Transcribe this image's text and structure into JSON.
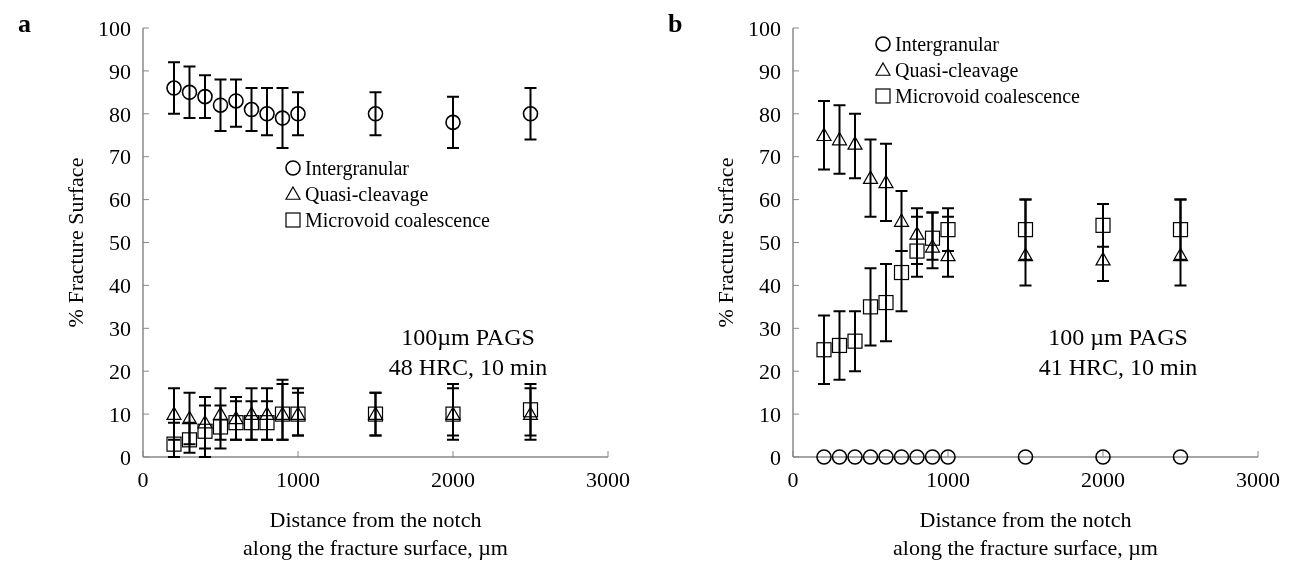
{
  "chart_data": [
    {
      "type": "scatter",
      "title": "a",
      "xlabel": "Distance from the notch\nalong the fracture surface, µm",
      "ylabel": "% Fracture Surface",
      "x": [
        200,
        300,
        400,
        500,
        600,
        700,
        800,
        900,
        1000,
        1500,
        2000,
        2500
      ],
      "xlim": [
        0,
        3000
      ],
      "xticks": [
        0,
        1000,
        2000,
        3000
      ],
      "ylim": [
        0,
        100
      ],
      "yticks": [
        0,
        10,
        20,
        30,
        40,
        50,
        60,
        70,
        80,
        90,
        100
      ],
      "grid": false,
      "legend": "right",
      "annotations": [
        "100µm PAGS\n48 HRC, 10 min"
      ],
      "series": [
        {
          "name": "Intergranular",
          "color": "#000000",
          "marker": "circle",
          "values": [
            86,
            85,
            84,
            82,
            83,
            81,
            80,
            79,
            80,
            80,
            78,
            80
          ],
          "errors": [
            [
              80,
              92
            ],
            [
              79,
              91
            ],
            [
              79,
              89
            ],
            [
              76,
              88
            ],
            [
              77,
              88
            ],
            [
              76,
              86
            ],
            [
              75,
              86
            ],
            [
              72,
              86
            ],
            [
              75,
              85
            ],
            [
              75,
              85
            ],
            [
              72,
              84
            ],
            [
              74,
              86
            ]
          ]
        },
        {
          "name": "Quasi-cleavage",
          "color": "#000000",
          "marker": "triangle",
          "values": [
            10,
            9,
            8,
            10,
            9,
            10,
            10,
            10,
            10,
            10,
            10,
            10
          ],
          "errors": [
            [
              4,
              16
            ],
            [
              3,
              15
            ],
            [
              2,
              14
            ],
            [
              4,
              16
            ],
            [
              4,
              14
            ],
            [
              4,
              16
            ],
            [
              4,
              16
            ],
            [
              4,
              18
            ],
            [
              5,
              15
            ],
            [
              5,
              15
            ],
            [
              4,
              17
            ],
            [
              4,
              17
            ]
          ]
        },
        {
          "name": "Microvoid coalescence",
          "color": "#000000",
          "marker": "square",
          "values": [
            3,
            4,
            6,
            7,
            8,
            8,
            8,
            10,
            10,
            10,
            10,
            11
          ],
          "errors": [
            [
              0,
              8
            ],
            [
              1,
              8
            ],
            [
              0,
              12
            ],
            [
              2,
              12
            ],
            [
              4,
              13
            ],
            [
              4,
              13
            ],
            [
              4,
              13
            ],
            [
              4,
              17
            ],
            [
              5,
              16
            ],
            [
              5,
              15
            ],
            [
              5,
              16
            ],
            [
              5,
              16
            ]
          ]
        }
      ]
    },
    {
      "type": "scatter",
      "title": "b",
      "xlabel": "Distance from the notch\nalong the fracture surface, µm",
      "ylabel": "% Fracture Surface",
      "x": [
        200,
        300,
        400,
        500,
        600,
        700,
        800,
        900,
        1000,
        1500,
        2000,
        2500
      ],
      "xlim": [
        0,
        3000
      ],
      "xticks": [
        0,
        1000,
        2000,
        3000
      ],
      "ylim": [
        0,
        100
      ],
      "yticks": [
        0,
        10,
        20,
        30,
        40,
        50,
        60,
        70,
        80,
        90,
        100
      ],
      "grid": false,
      "legend": "top",
      "annotations": [
        "100 µm PAGS\n41 HRC, 10 min"
      ],
      "series": [
        {
          "name": "Intergranular",
          "color": "#000000",
          "marker": "circle",
          "values": [
            0,
            0,
            0,
            0,
            0,
            0,
            0,
            0,
            0,
            0,
            0,
            0
          ]
        },
        {
          "name": "Quasi-cleavage",
          "color": "#000000",
          "marker": "triangle",
          "values": [
            75,
            74,
            73,
            65,
            64,
            55,
            52,
            49,
            47,
            47,
            46,
            47
          ],
          "errors": [
            [
              67,
              83
            ],
            [
              66,
              82
            ],
            [
              65,
              80
            ],
            [
              56,
              74
            ],
            [
              55,
              73
            ],
            [
              48,
              62
            ],
            [
              45,
              58
            ],
            [
              44,
              57
            ],
            [
              42,
              56
            ],
            [
              40,
              60
            ],
            [
              41,
              59
            ],
            [
              40,
              60
            ]
          ]
        },
        {
          "name": "Microvoid coalescence",
          "color": "#000000",
          "marker": "square",
          "values": [
            25,
            26,
            27,
            35,
            36,
            43,
            48,
            51,
            53,
            53,
            54,
            53
          ],
          "errors": [
            [
              17,
              33
            ],
            [
              18,
              34
            ],
            [
              20,
              34
            ],
            [
              26,
              44
            ],
            [
              27,
              45
            ],
            [
              34,
              48
            ],
            [
              42,
              56
            ],
            [
              46,
              57
            ],
            [
              48,
              58
            ],
            [
              46,
              60
            ],
            [
              49,
              59
            ],
            [
              46,
              60
            ]
          ]
        }
      ]
    }
  ]
}
